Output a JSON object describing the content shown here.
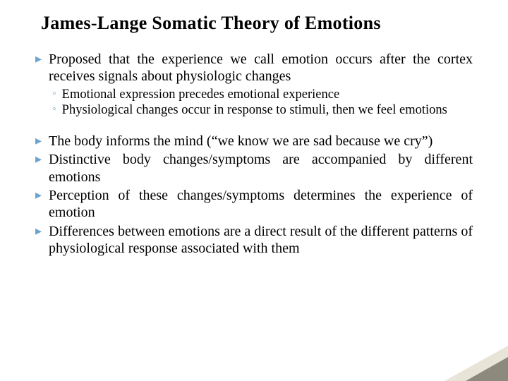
{
  "title": "James-Lange Somatic Theory of Emotions",
  "bullets": {
    "b1": "Proposed that the experience we call emotion occurs after the cortex receives signals about physiologic changes",
    "s1": "Emotional expression precedes emotional experience",
    "s2": "Physiological changes occur in response to stimuli, then we feel emotions",
    "b2": "The body informs the mind (“we know we are sad because we cry”)",
    "b3": "Distinctive body changes/symptoms are accompanied by different emotions",
    "b4": "Perception of these changes/symptoms determines the experience of emotion",
    "b5": "Differences between emotions are a direct result of the different patterns of physiological response associated with them"
  },
  "colors": {
    "bullet_marker": "#6aa3cf",
    "text": "#000000",
    "background": "#ffffff",
    "corner_light": "#e8e4d8",
    "corner_dark": "#8c8a7c"
  },
  "typography": {
    "title_fontsize": 26,
    "main_bullet_fontsize": 20,
    "sub_bullet_fontsize": 18.5,
    "font_family": "Georgia, Times New Roman, serif"
  },
  "markers": {
    "main": "▸",
    "sub": "◦"
  }
}
